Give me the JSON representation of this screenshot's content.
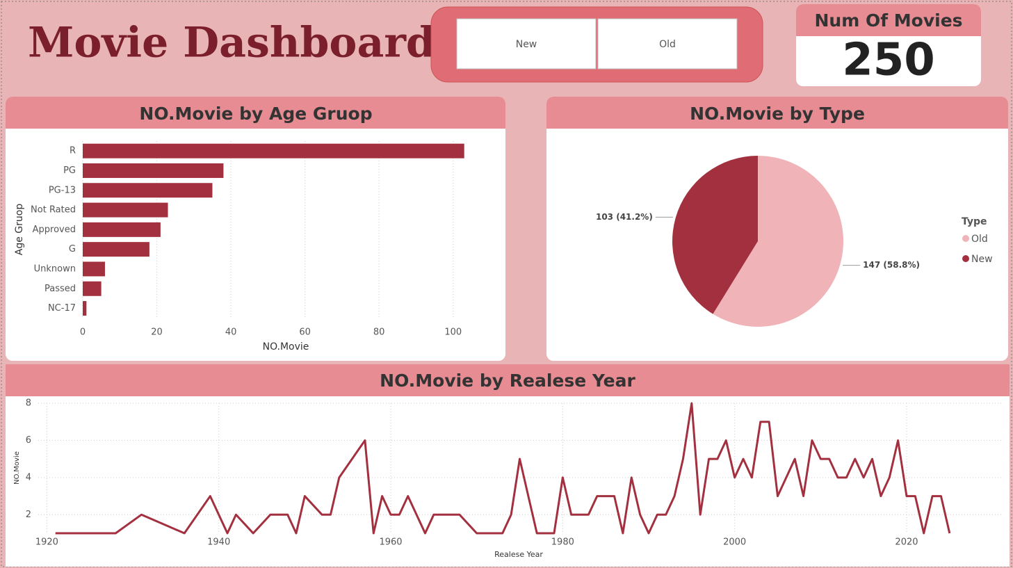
{
  "header": {
    "title": "Movie Dashboard"
  },
  "slicer": {
    "options": [
      "New",
      "Old"
    ]
  },
  "card": {
    "title": "Num Of Movies",
    "value": 250
  },
  "chart_data": [
    {
      "type": "bar",
      "orientation": "horizontal",
      "title": "NO.Movie by Age Gruop",
      "x_label": "NO.Movie",
      "y_label": "Age Gruop",
      "categories": [
        "R",
        "PG",
        "PG-13",
        "Not Rated",
        "Approved",
        "G",
        "Unknown",
        "Passed",
        "NC-17"
      ],
      "values": [
        103,
        38,
        35,
        23,
        21,
        18,
        6,
        5,
        1
      ],
      "color": "#a3303f",
      "xlim": [
        0,
        110
      ],
      "xticks": [
        0,
        20,
        40,
        60,
        80,
        100
      ],
      "grid": true
    },
    {
      "type": "pie",
      "title": "NO.Movie by Type",
      "legend_title": "Type",
      "legend": "right",
      "categories": [
        "Old",
        "New"
      ],
      "values": [
        147,
        103
      ],
      "value_labels": [
        "147 (58.8%)",
        "103 (41.2%)"
      ],
      "colors": [
        "#f0b4b8",
        "#a3303f"
      ]
    },
    {
      "type": "line",
      "title": "NO.Movie by Realese Year",
      "x_label": "Realese Year",
      "y_label": "NO.Movie",
      "color": "#a3303f",
      "x": [
        1921,
        1928,
        1931,
        1936,
        1939,
        1941,
        1942,
        1944,
        1946,
        1948,
        1949,
        1950,
        1952,
        1953,
        1954,
        1957,
        1958,
        1959,
        1960,
        1961,
        1962,
        1964,
        1965,
        1968,
        1970,
        1973,
        1974,
        1975,
        1977,
        1979,
        1980,
        1981,
        1983,
        1984,
        1986,
        1987,
        1988,
        1989,
        1990,
        1991,
        1992,
        1993,
        1994,
        1995,
        1996,
        1997,
        1998,
        1999,
        2000,
        2001,
        2002,
        2003,
        2004,
        2005,
        2007,
        2008,
        2009,
        2010,
        2011,
        2012,
        2013,
        2014,
        2015,
        2016,
        2017,
        2018,
        2019,
        2020,
        2021,
        2022,
        2023,
        2024,
        2025
      ],
      "values": [
        1,
        1,
        2,
        1,
        3,
        1,
        2,
        1,
        2,
        2,
        1,
        3,
        2,
        2,
        4,
        6,
        1,
        3,
        2,
        2,
        3,
        1,
        2,
        2,
        1,
        1,
        2,
        5,
        1,
        1,
        4,
        2,
        2,
        3,
        3,
        1,
        4,
        2,
        1,
        2,
        2,
        3,
        5,
        8,
        2,
        5,
        5,
        6,
        4,
        5,
        4,
        7,
        7,
        3,
        5,
        3,
        6,
        5,
        5,
        4,
        4,
        5,
        4,
        5,
        3,
        4,
        6,
        3,
        3,
        1,
        3,
        3,
        1
      ],
      "xlim": [
        1919,
        2031
      ],
      "xticks": [
        1920,
        1940,
        1960,
        1980,
        2000,
        2020
      ],
      "ylim": [
        1,
        8
      ],
      "yticks": [
        2,
        4,
        6,
        8
      ],
      "grid": true
    }
  ]
}
